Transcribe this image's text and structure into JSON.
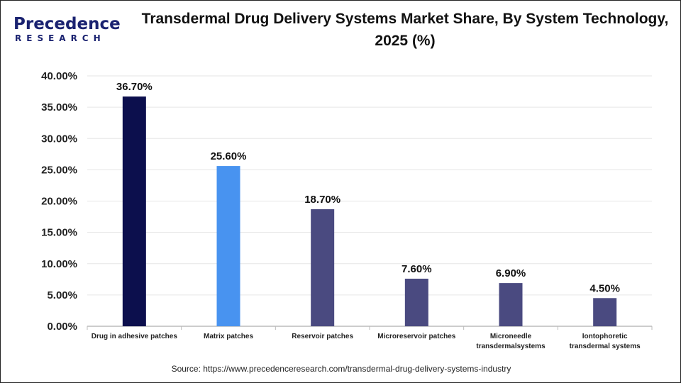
{
  "logo": {
    "line1": "Precedence",
    "line2": "RESEARCH"
  },
  "source": "Source: https://www.precedenceresearch.com/transdermal-drug-delivery-systems-industry",
  "chart_data": {
    "type": "bar",
    "title": "Transdermal Drug Delivery Systems Market Share, By System Technology, 2025 (%)",
    "categories": [
      "Drug in adhesive patches",
      "Matrix patches",
      "Reservoir patches",
      "Microreservoir patches",
      "Microneedle transdermalsystems",
      "Iontophoretic transdermal systems"
    ],
    "category_lines": [
      [
        "Drug in adhesive patches"
      ],
      [
        "Matrix patches"
      ],
      [
        "Reservoir patches"
      ],
      [
        "Microreservoir patches"
      ],
      [
        "Microneedle",
        "transdermalsystems"
      ],
      [
        "Iontophoretic",
        "transdermal systems"
      ]
    ],
    "values": [
      36.7,
      25.6,
      18.7,
      7.6,
      6.9,
      4.5
    ],
    "data_labels": [
      "36.70%",
      "25.60%",
      "18.70%",
      "7.60%",
      "6.90%",
      "4.50%"
    ],
    "colors": [
      "#0c0f4d",
      "#4893f0",
      "#4a4a80",
      "#4a4a80",
      "#4a4a80",
      "#4a4a80"
    ],
    "ylim": [
      0,
      40
    ],
    "yticks": [
      "0.00%",
      "5.00%",
      "10.00%",
      "15.00%",
      "20.00%",
      "25.00%",
      "30.00%",
      "35.00%",
      "40.00%"
    ],
    "grid": true,
    "xlabel": "",
    "ylabel": ""
  }
}
